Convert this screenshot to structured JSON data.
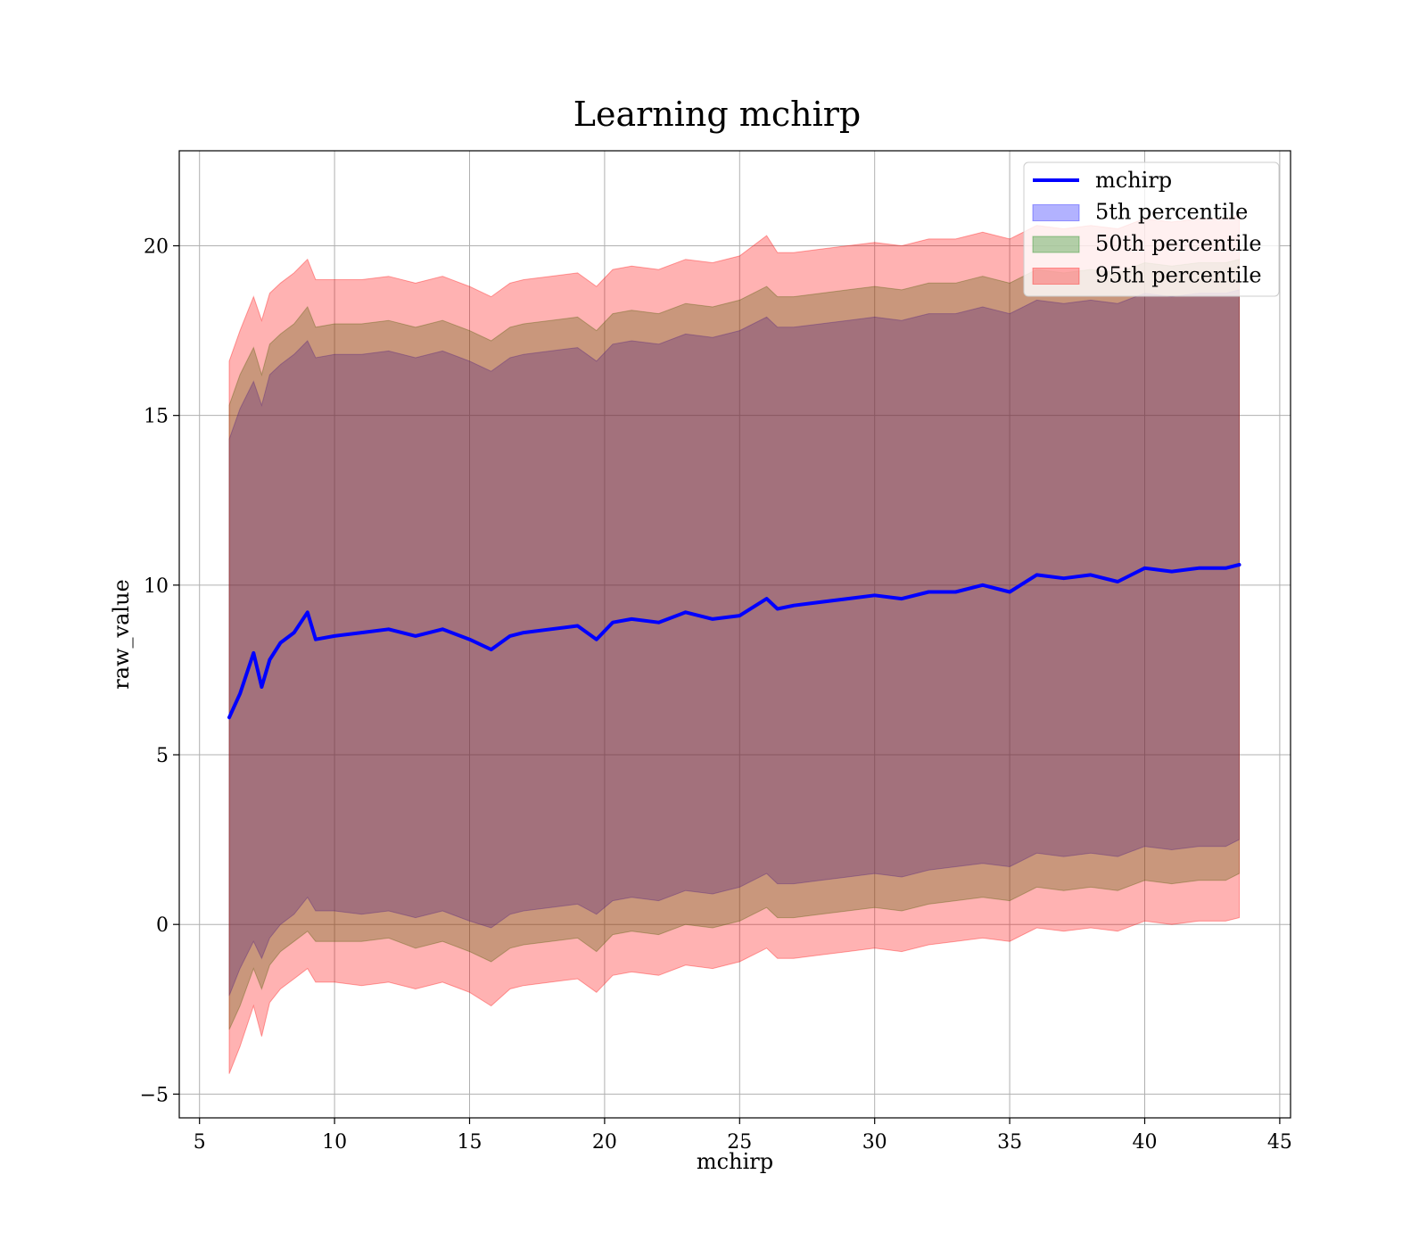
{
  "chart_data": {
    "type": "area",
    "title": "Learning mchirp",
    "xlabel": "mchirp",
    "ylabel": "raw_value",
    "xlim": [
      4.25,
      45.4
    ],
    "ylim": [
      -5.7,
      22.8
    ],
    "xticks": [
      5,
      10,
      15,
      20,
      25,
      30,
      35,
      40,
      45
    ],
    "yticks": [
      -5,
      0,
      5,
      10,
      15,
      20
    ],
    "grid": true,
    "legend_position": "top-right",
    "x": [
      6.1,
      6.5,
      7.0,
      7.3,
      7.6,
      8.0,
      8.5,
      9.0,
      9.3,
      10,
      11,
      12,
      13,
      14,
      15,
      15.8,
      16.5,
      17,
      18,
      19,
      19.7,
      20.3,
      21,
      22,
      23,
      24,
      25,
      26,
      26.4,
      27,
      28,
      29,
      30,
      31,
      32,
      33,
      34,
      35,
      36,
      37,
      38,
      39,
      40,
      41,
      42,
      43,
      43.5
    ],
    "series": [
      {
        "name": "mchirp",
        "kind": "line",
        "color": "#0000ff",
        "values": [
          6.1,
          6.8,
          8.0,
          7.0,
          7.8,
          8.3,
          8.6,
          9.2,
          8.4,
          8.5,
          8.6,
          8.7,
          8.5,
          8.7,
          8.4,
          8.1,
          8.5,
          8.6,
          8.7,
          8.8,
          8.4,
          8.9,
          9.0,
          8.9,
          9.2,
          9.0,
          9.1,
          9.6,
          9.3,
          9.4,
          9.5,
          9.6,
          9.7,
          9.6,
          9.8,
          9.8,
          10.0,
          9.8,
          10.3,
          10.2,
          10.3,
          10.1,
          10.5,
          10.4,
          10.5,
          10.5,
          10.6
        ]
      },
      {
        "name": "5th percentile",
        "kind": "band",
        "color": "#0000ff",
        "opacity": 0.3,
        "lower": [
          -2.1,
          -1.3,
          -0.5,
          -1.0,
          -0.4,
          0.0,
          0.3,
          0.8,
          0.4,
          0.4,
          0.3,
          0.4,
          0.2,
          0.4,
          0.1,
          -0.1,
          0.3,
          0.4,
          0.5,
          0.6,
          0.3,
          0.7,
          0.8,
          0.7,
          1.0,
          0.9,
          1.1,
          1.5,
          1.2,
          1.2,
          1.3,
          1.4,
          1.5,
          1.4,
          1.6,
          1.7,
          1.8,
          1.7,
          2.1,
          2.0,
          2.1,
          2.0,
          2.3,
          2.2,
          2.3,
          2.3,
          2.5
        ],
        "upper": [
          14.3,
          15.2,
          16.0,
          15.3,
          16.2,
          16.5,
          16.8,
          17.2,
          16.7,
          16.8,
          16.8,
          16.9,
          16.7,
          16.9,
          16.6,
          16.3,
          16.7,
          16.8,
          16.9,
          17.0,
          16.6,
          17.1,
          17.2,
          17.1,
          17.4,
          17.3,
          17.5,
          17.9,
          17.6,
          17.6,
          17.7,
          17.8,
          17.9,
          17.8,
          18.0,
          18.0,
          18.2,
          18.0,
          18.4,
          18.3,
          18.4,
          18.3,
          18.6,
          18.5,
          18.6,
          18.6,
          18.7
        ]
      },
      {
        "name": "50th percentile",
        "kind": "band",
        "color": "#008000",
        "opacity": 0.3,
        "lower": [
          -3.1,
          -2.4,
          -1.3,
          -1.9,
          -1.2,
          -0.8,
          -0.5,
          -0.2,
          -0.5,
          -0.5,
          -0.5,
          -0.4,
          -0.7,
          -0.5,
          -0.8,
          -1.1,
          -0.7,
          -0.6,
          -0.5,
          -0.4,
          -0.8,
          -0.3,
          -0.2,
          -0.3,
          0.0,
          -0.1,
          0.1,
          0.5,
          0.2,
          0.2,
          0.3,
          0.4,
          0.5,
          0.4,
          0.6,
          0.7,
          0.8,
          0.7,
          1.1,
          1.0,
          1.1,
          1.0,
          1.3,
          1.2,
          1.3,
          1.3,
          1.5
        ],
        "upper": [
          15.3,
          16.2,
          17.0,
          16.2,
          17.1,
          17.4,
          17.7,
          18.2,
          17.6,
          17.7,
          17.7,
          17.8,
          17.6,
          17.8,
          17.5,
          17.2,
          17.6,
          17.7,
          17.8,
          17.9,
          17.5,
          18.0,
          18.1,
          18.0,
          18.3,
          18.2,
          18.4,
          18.8,
          18.5,
          18.5,
          18.6,
          18.7,
          18.8,
          18.7,
          18.9,
          18.9,
          19.1,
          18.9,
          19.3,
          19.2,
          19.3,
          19.2,
          19.5,
          19.4,
          19.5,
          19.5,
          19.6
        ]
      },
      {
        "name": "95th percentile",
        "kind": "band",
        "color": "#ff0000",
        "opacity": 0.3,
        "lower": [
          -4.4,
          -3.6,
          -2.4,
          -3.3,
          -2.3,
          -1.9,
          -1.6,
          -1.3,
          -1.7,
          -1.7,
          -1.8,
          -1.7,
          -1.9,
          -1.7,
          -2.0,
          -2.4,
          -1.9,
          -1.8,
          -1.7,
          -1.6,
          -2.0,
          -1.5,
          -1.4,
          -1.5,
          -1.2,
          -1.3,
          -1.1,
          -0.7,
          -1.0,
          -1.0,
          -0.9,
          -0.8,
          -0.7,
          -0.8,
          -0.6,
          -0.5,
          -0.4,
          -0.5,
          -0.1,
          -0.2,
          -0.1,
          -0.2,
          0.1,
          0.0,
          0.1,
          0.1,
          0.2
        ],
        "upper": [
          16.6,
          17.5,
          18.5,
          17.8,
          18.6,
          18.9,
          19.2,
          19.6,
          19.0,
          19.0,
          19.0,
          19.1,
          18.9,
          19.1,
          18.8,
          18.5,
          18.9,
          19.0,
          19.1,
          19.2,
          18.8,
          19.3,
          19.4,
          19.3,
          19.6,
          19.5,
          19.7,
          20.3,
          19.8,
          19.8,
          19.9,
          20.0,
          20.1,
          20.0,
          20.2,
          20.2,
          20.4,
          20.2,
          20.6,
          20.5,
          20.6,
          20.5,
          20.8,
          20.7,
          20.8,
          20.8,
          20.9
        ]
      }
    ]
  }
}
